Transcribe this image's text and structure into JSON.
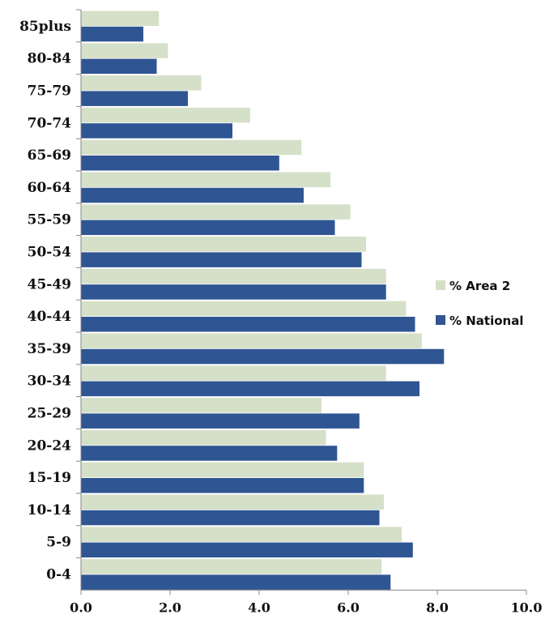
{
  "chart_data": {
    "type": "bar",
    "orientation": "horizontal",
    "categories": [
      "85plus",
      "80-84",
      "75-79",
      "70-74",
      "65-69",
      "60-64",
      "55-59",
      "50-54",
      "45-49",
      "40-44",
      "35-39",
      "30-34",
      "25-29",
      "20-24",
      "15-19",
      "10-14",
      "5-9",
      "0-4"
    ],
    "series": [
      {
        "name": "% Area 2",
        "color": "#d5e0c8",
        "values": [
          1.75,
          1.95,
          2.7,
          3.8,
          4.95,
          5.6,
          6.05,
          6.4,
          6.85,
          7.3,
          7.65,
          6.85,
          5.4,
          5.5,
          6.35,
          6.8,
          7.2,
          6.75
        ]
      },
      {
        "name": "% National",
        "color": "#2f5593",
        "values": [
          1.4,
          1.7,
          2.4,
          3.4,
          4.45,
          5.0,
          5.7,
          6.3,
          6.85,
          7.5,
          8.15,
          7.6,
          6.25,
          5.75,
          6.35,
          6.7,
          7.45,
          6.95
        ]
      }
    ],
    "xlim": [
      0,
      10
    ],
    "xticks": [
      "0.0",
      "2.0",
      "4.0",
      "6.0",
      "8.0",
      "10.0"
    ],
    "xtick_values": [
      0,
      2,
      4,
      6,
      8,
      10
    ],
    "grid": false,
    "legend": "right"
  }
}
